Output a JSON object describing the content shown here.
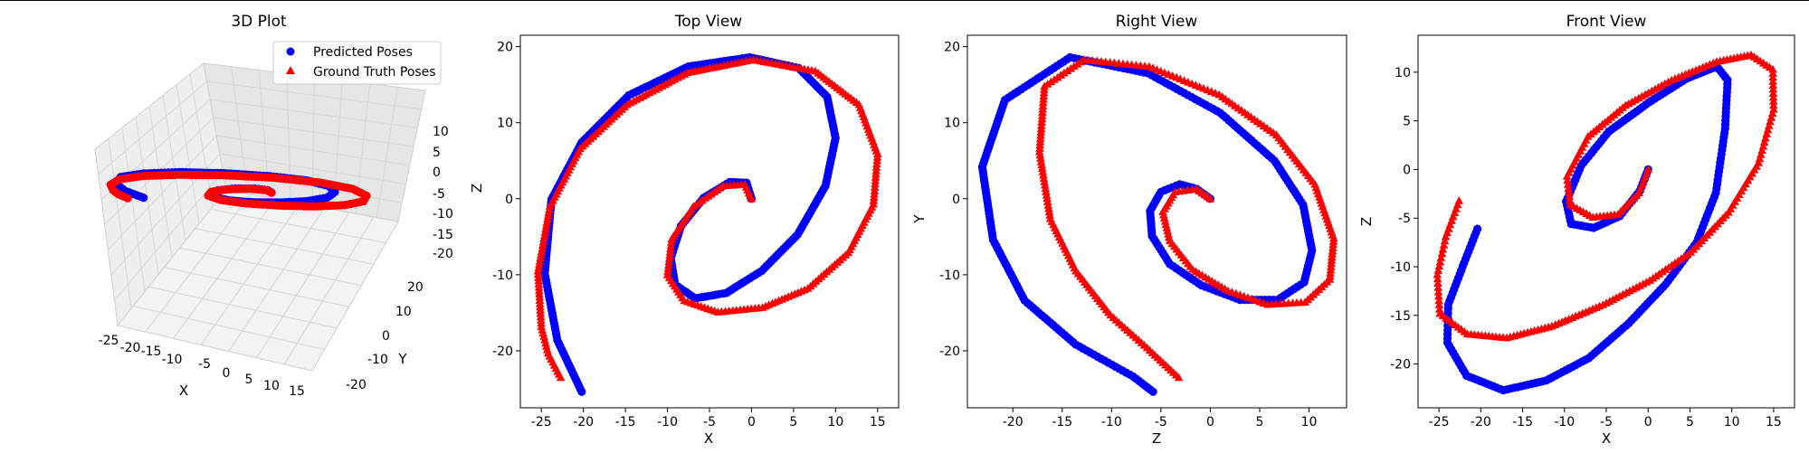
{
  "colors": {
    "predicted": "#0000ff",
    "ground_truth": "#ff0000",
    "pane": "#f2f2f2",
    "grid": "#d6d6d6"
  },
  "legend": {
    "items": [
      {
        "label": "Predicted Poses",
        "marker": "circle"
      },
      {
        "label": "Ground Truth Poses",
        "marker": "triangle"
      }
    ],
    "placement": "upper-right"
  },
  "chart_data": [
    {
      "type": "scatter-3d",
      "title": "3D Plot",
      "xlabel": "X",
      "ylabel": "Y",
      "zlabel": "",
      "xticks": [
        -25,
        -20,
        -15,
        -10,
        -5,
        0,
        5,
        10,
        15
      ],
      "yticks": [
        -20,
        -10,
        0,
        10,
        20
      ],
      "zticks": [
        10,
        5,
        0,
        -5,
        -10,
        -15,
        -20
      ],
      "grid": true
    },
    {
      "type": "scatter",
      "title": "Top View",
      "xlabel": "X",
      "ylabel": "Z",
      "xlim": [
        -27.5,
        17.5
      ],
      "ylim": [
        -27.5,
        21.5
      ],
      "xticks": [
        -25,
        -20,
        -15,
        -10,
        -5,
        0,
        5,
        10,
        15
      ],
      "yticks": [
        -20,
        -10,
        0,
        10,
        20
      ],
      "series": [
        {
          "name": "Predicted Poses",
          "marker": "circle",
          "x": [
            0.0,
            -0.6,
            -2.6,
            -5.7,
            -8.4,
            -9.6,
            -9.1,
            -6.7,
            -3.0,
            1.2,
            5.5,
            8.8,
            10.0,
            9.0,
            5.6,
            -0.2,
            -7.5,
            -14.6,
            -20.2,
            -23.8,
            -24.6,
            -23.1,
            -20.2
          ],
          "y": [
            0.0,
            2.1,
            2.2,
            0.1,
            -3.6,
            -7.8,
            -11.3,
            -13.1,
            -12.4,
            -9.5,
            -4.7,
            1.7,
            8.0,
            13.4,
            17.2,
            18.6,
            17.4,
            13.6,
            7.4,
            -0.1,
            -9.8,
            -18.6,
            -25.4
          ]
        },
        {
          "name": "Ground Truth Poses",
          "marker": "triangle",
          "x": [
            0.0,
            -0.8,
            -3.4,
            -6.9,
            -9.5,
            -10.0,
            -8.0,
            -4.0,
            1.3,
            6.7,
            11.5,
            14.5,
            15.0,
            12.8,
            7.6,
            0.2,
            -7.6,
            -14.8,
            -20.4,
            -24.0,
            -25.4,
            -25.0,
            -24.2,
            -22.7
          ],
          "y": [
            0.0,
            1.9,
            1.7,
            -1.0,
            -5.3,
            -10.0,
            -13.4,
            -14.9,
            -14.3,
            -11.8,
            -7.1,
            -0.7,
            5.9,
            12.4,
            16.8,
            18.3,
            16.6,
            12.4,
            6.6,
            -1.0,
            -9.5,
            -16.8,
            -20.3,
            -23.5
          ]
        }
      ],
      "grid": false
    },
    {
      "type": "scatter",
      "title": "Right View",
      "xlabel": "Z",
      "ylabel": "Y",
      "xlim": [
        -24.6,
        13.8
      ],
      "ylim": [
        -27.5,
        21.5
      ],
      "xticks": [
        -20,
        -15,
        -10,
        -5,
        0,
        5,
        10
      ],
      "yticks": [
        -20,
        -10,
        0,
        10,
        20
      ],
      "series": [
        {
          "name": "Predicted Poses",
          "marker": "circle",
          "x": [
            0.0,
            -1.4,
            -3.1,
            -5.0,
            -6.1,
            -5.9,
            -4.1,
            -0.9,
            3.0,
            6.8,
            9.5,
            10.3,
            9.4,
            6.5,
            1.0,
            -6.3,
            -14.2,
            -20.8,
            -23.1,
            -22.0,
            -18.8,
            -13.6,
            -7.8,
            -5.8
          ],
          "y": [
            0.0,
            1.3,
            1.9,
            0.9,
            -1.6,
            -4.9,
            -8.6,
            -11.4,
            -13.3,
            -13.3,
            -11.0,
            -6.8,
            -0.8,
            5.0,
            11.3,
            16.5,
            18.6,
            13.0,
            4.2,
            -5.4,
            -13.4,
            -19.2,
            -23.4,
            -25.4
          ]
        },
        {
          "name": "Ground Truth Poses",
          "marker": "triangle",
          "x": [
            0.0,
            -1.4,
            -3.6,
            -4.8,
            -4.1,
            -1.8,
            1.8,
            5.8,
            9.6,
            12.1,
            12.5,
            10.6,
            6.7,
            0.9,
            -6.2,
            -12.8,
            -16.8,
            -17.3,
            -16.2,
            -13.6,
            -10.1,
            -6.4,
            -3.2
          ],
          "y": [
            0.0,
            1.3,
            0.9,
            -1.7,
            -5.5,
            -9.3,
            -12.1,
            -13.9,
            -13.6,
            -10.6,
            -5.2,
            1.9,
            8.4,
            13.7,
            17.4,
            18.3,
            14.8,
            6.2,
            -2.6,
            -9.5,
            -15.3,
            -19.6,
            -23.5
          ]
        }
      ],
      "grid": false
    },
    {
      "type": "scatter",
      "title": "Front View",
      "xlabel": "X",
      "ylabel": "Z",
      "xlim": [
        -27.5,
        17.5
      ],
      "ylim": [
        -24.5,
        13.8
      ],
      "xticks": [
        -25,
        -20,
        -15,
        -10,
        -5,
        0,
        5,
        10,
        15
      ],
      "yticks": [
        10,
        5,
        0,
        -5,
        -10,
        -15,
        -20
      ],
      "series": [
        {
          "name": "Predicted Poses",
          "marker": "circle",
          "x": [
            0.0,
            -1.0,
            -3.4,
            -6.5,
            -9.2,
            -9.8,
            -8.0,
            -4.7,
            0.1,
            4.5,
            8.2,
            9.5,
            9.2,
            8.1,
            5.8,
            2.1,
            -2.3,
            -7.1,
            -12.2,
            -17.3,
            -21.7,
            -24.0,
            -23.9,
            -22.0,
            -20.4
          ],
          "y": [
            0.0,
            -2.2,
            -4.8,
            -6.0,
            -5.6,
            -3.3,
            0.4,
            3.9,
            6.9,
            9.3,
            10.6,
            9.2,
            4.2,
            -2.4,
            -7.5,
            -11.8,
            -15.8,
            -19.4,
            -21.7,
            -22.7,
            -21.2,
            -17.8,
            -13.9,
            -9.6,
            -6.1
          ]
        },
        {
          "name": "Ground Truth Poses",
          "marker": "triangle",
          "x": [
            0.0,
            -1.1,
            -3.6,
            -6.6,
            -9.3,
            -9.7,
            -7.2,
            -2.7,
            2.8,
            8.2,
            12.3,
            14.9,
            15.0,
            13.2,
            9.6,
            5.1,
            0.2,
            -5.4,
            -11.5,
            -16.9,
            -21.6,
            -24.9,
            -25.2,
            -24.2,
            -22.6
          ],
          "y": [
            0.0,
            -2.4,
            -4.6,
            -4.9,
            -3.6,
            -0.7,
            3.4,
            6.6,
            9.2,
            11.1,
            11.8,
            10.3,
            6.2,
            0.7,
            -4.4,
            -8.5,
            -11.4,
            -13.9,
            -16.1,
            -17.3,
            -16.9,
            -14.8,
            -10.8,
            -6.9,
            -3.2
          ]
        }
      ],
      "grid": false
    }
  ]
}
